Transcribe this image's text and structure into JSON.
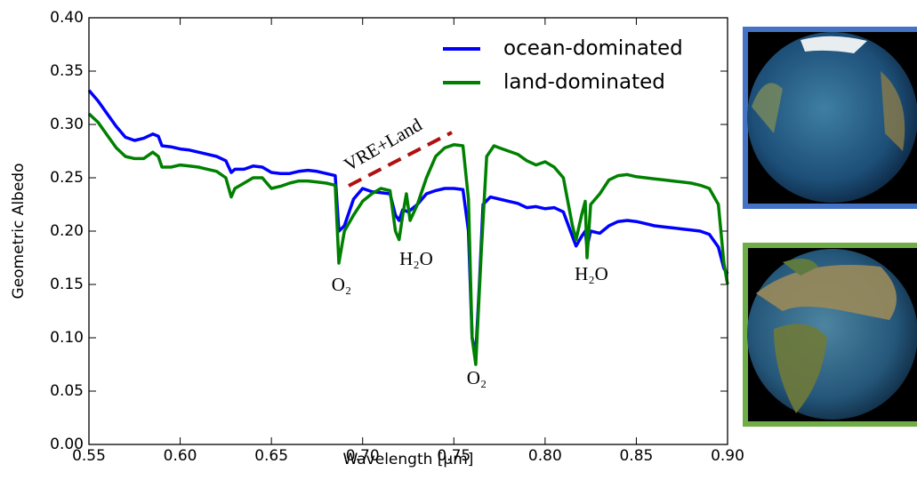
{
  "chart_data": {
    "type": "line",
    "xlabel": "Wavelength [μm]",
    "ylabel": "Geometric Albedo",
    "xlim": [
      0.55,
      0.9
    ],
    "ylim": [
      0.0,
      0.4
    ],
    "xticks": [
      0.55,
      {
        "value": 0.6,
        "label": "0.60"
      },
      0.65,
      {
        "value": 0.7,
        "label": "0.70"
      },
      0.75,
      {
        "value": 0.8,
        "label": "0.80"
      },
      0.85,
      {
        "value": 0.9,
        "label": "0.90"
      }
    ],
    "yticks": [
      {
        "value": 0,
        "label": "0.00"
      },
      0.05,
      {
        "value": 0.1,
        "label": "0.10"
      },
      0.15,
      {
        "value": 0.2,
        "label": "0.20"
      },
      0.25,
      {
        "value": 0.3,
        "label": "0.30"
      },
      0.35,
      {
        "value": 0.4,
        "label": "0.40"
      }
    ],
    "legend": "upper right",
    "annotations": [
      "VRE+Land",
      "O₂",
      "H₂O",
      "O₂",
      "H₂O"
    ],
    "series": [
      {
        "name": "ocean-dominated",
        "color": "#0000ff",
        "x": [
          0.55,
          0.555,
          0.56,
          0.565,
          0.57,
          0.575,
          0.58,
          0.585,
          0.588,
          0.59,
          0.595,
          0.6,
          0.605,
          0.61,
          0.615,
          0.62,
          0.625,
          0.628,
          0.63,
          0.635,
          0.64,
          0.645,
          0.65,
          0.655,
          0.66,
          0.665,
          0.67,
          0.675,
          0.68,
          0.685,
          0.687,
          0.69,
          0.695,
          0.7,
          0.705,
          0.71,
          0.715,
          0.718,
          0.72,
          0.722,
          0.725,
          0.73,
          0.735,
          0.74,
          0.745,
          0.75,
          0.755,
          0.758,
          0.76,
          0.762,
          0.764,
          0.766,
          0.77,
          0.775,
          0.78,
          0.785,
          0.79,
          0.795,
          0.8,
          0.805,
          0.81,
          0.815,
          0.817,
          0.82,
          0.822,
          0.823,
          0.825,
          0.83,
          0.835,
          0.84,
          0.845,
          0.85,
          0.855,
          0.86,
          0.865,
          0.87,
          0.875,
          0.88,
          0.885,
          0.89,
          0.895,
          0.898,
          0.9
        ],
        "values": [
          0.332,
          0.322,
          0.31,
          0.298,
          0.288,
          0.285,
          0.287,
          0.291,
          0.289,
          0.28,
          0.279,
          0.277,
          0.276,
          0.274,
          0.272,
          0.27,
          0.266,
          0.255,
          0.258,
          0.258,
          0.261,
          0.26,
          0.255,
          0.254,
          0.254,
          0.256,
          0.257,
          0.256,
          0.254,
          0.252,
          0.2,
          0.205,
          0.23,
          0.24,
          0.237,
          0.236,
          0.235,
          0.215,
          0.21,
          0.22,
          0.218,
          0.225,
          0.235,
          0.238,
          0.24,
          0.24,
          0.239,
          0.2,
          0.1,
          0.085,
          0.15,
          0.225,
          0.232,
          0.23,
          0.228,
          0.226,
          0.222,
          0.223,
          0.221,
          0.222,
          0.218,
          0.195,
          0.186,
          0.195,
          0.2,
          0.185,
          0.2,
          0.198,
          0.205,
          0.209,
          0.21,
          0.209,
          0.207,
          0.205,
          0.204,
          0.203,
          0.202,
          0.201,
          0.2,
          0.197,
          0.185,
          0.165,
          0.16
        ]
      },
      {
        "name": "land-dominated",
        "color": "#008000",
        "x": [
          0.55,
          0.555,
          0.56,
          0.565,
          0.57,
          0.575,
          0.58,
          0.585,
          0.588,
          0.59,
          0.595,
          0.6,
          0.605,
          0.61,
          0.615,
          0.62,
          0.625,
          0.628,
          0.63,
          0.635,
          0.64,
          0.645,
          0.65,
          0.655,
          0.66,
          0.665,
          0.67,
          0.675,
          0.68,
          0.685,
          0.687,
          0.69,
          0.695,
          0.7,
          0.705,
          0.71,
          0.715,
          0.718,
          0.72,
          0.722,
          0.724,
          0.726,
          0.73,
          0.735,
          0.74,
          0.745,
          0.75,
          0.755,
          0.758,
          0.76,
          0.762,
          0.765,
          0.768,
          0.772,
          0.775,
          0.78,
          0.785,
          0.79,
          0.795,
          0.8,
          0.805,
          0.81,
          0.815,
          0.817,
          0.82,
          0.822,
          0.823,
          0.825,
          0.83,
          0.835,
          0.84,
          0.845,
          0.85,
          0.855,
          0.86,
          0.865,
          0.87,
          0.875,
          0.88,
          0.885,
          0.89,
          0.895,
          0.898,
          0.9
        ],
        "values": [
          0.31,
          0.302,
          0.29,
          0.278,
          0.27,
          0.268,
          0.268,
          0.274,
          0.27,
          0.26,
          0.26,
          0.262,
          0.261,
          0.26,
          0.258,
          0.256,
          0.25,
          0.232,
          0.24,
          0.245,
          0.25,
          0.25,
          0.24,
          0.242,
          0.245,
          0.247,
          0.247,
          0.246,
          0.245,
          0.243,
          0.17,
          0.2,
          0.215,
          0.228,
          0.235,
          0.24,
          0.238,
          0.2,
          0.192,
          0.215,
          0.235,
          0.21,
          0.225,
          0.25,
          0.27,
          0.278,
          0.281,
          0.28,
          0.23,
          0.1,
          0.075,
          0.18,
          0.27,
          0.28,
          0.278,
          0.275,
          0.272,
          0.266,
          0.262,
          0.265,
          0.26,
          0.25,
          0.205,
          0.192,
          0.215,
          0.228,
          0.175,
          0.225,
          0.235,
          0.248,
          0.252,
          0.253,
          0.251,
          0.25,
          0.249,
          0.248,
          0.247,
          0.246,
          0.245,
          0.243,
          0.24,
          0.225,
          0.17,
          0.15
        ]
      }
    ]
  }
}
